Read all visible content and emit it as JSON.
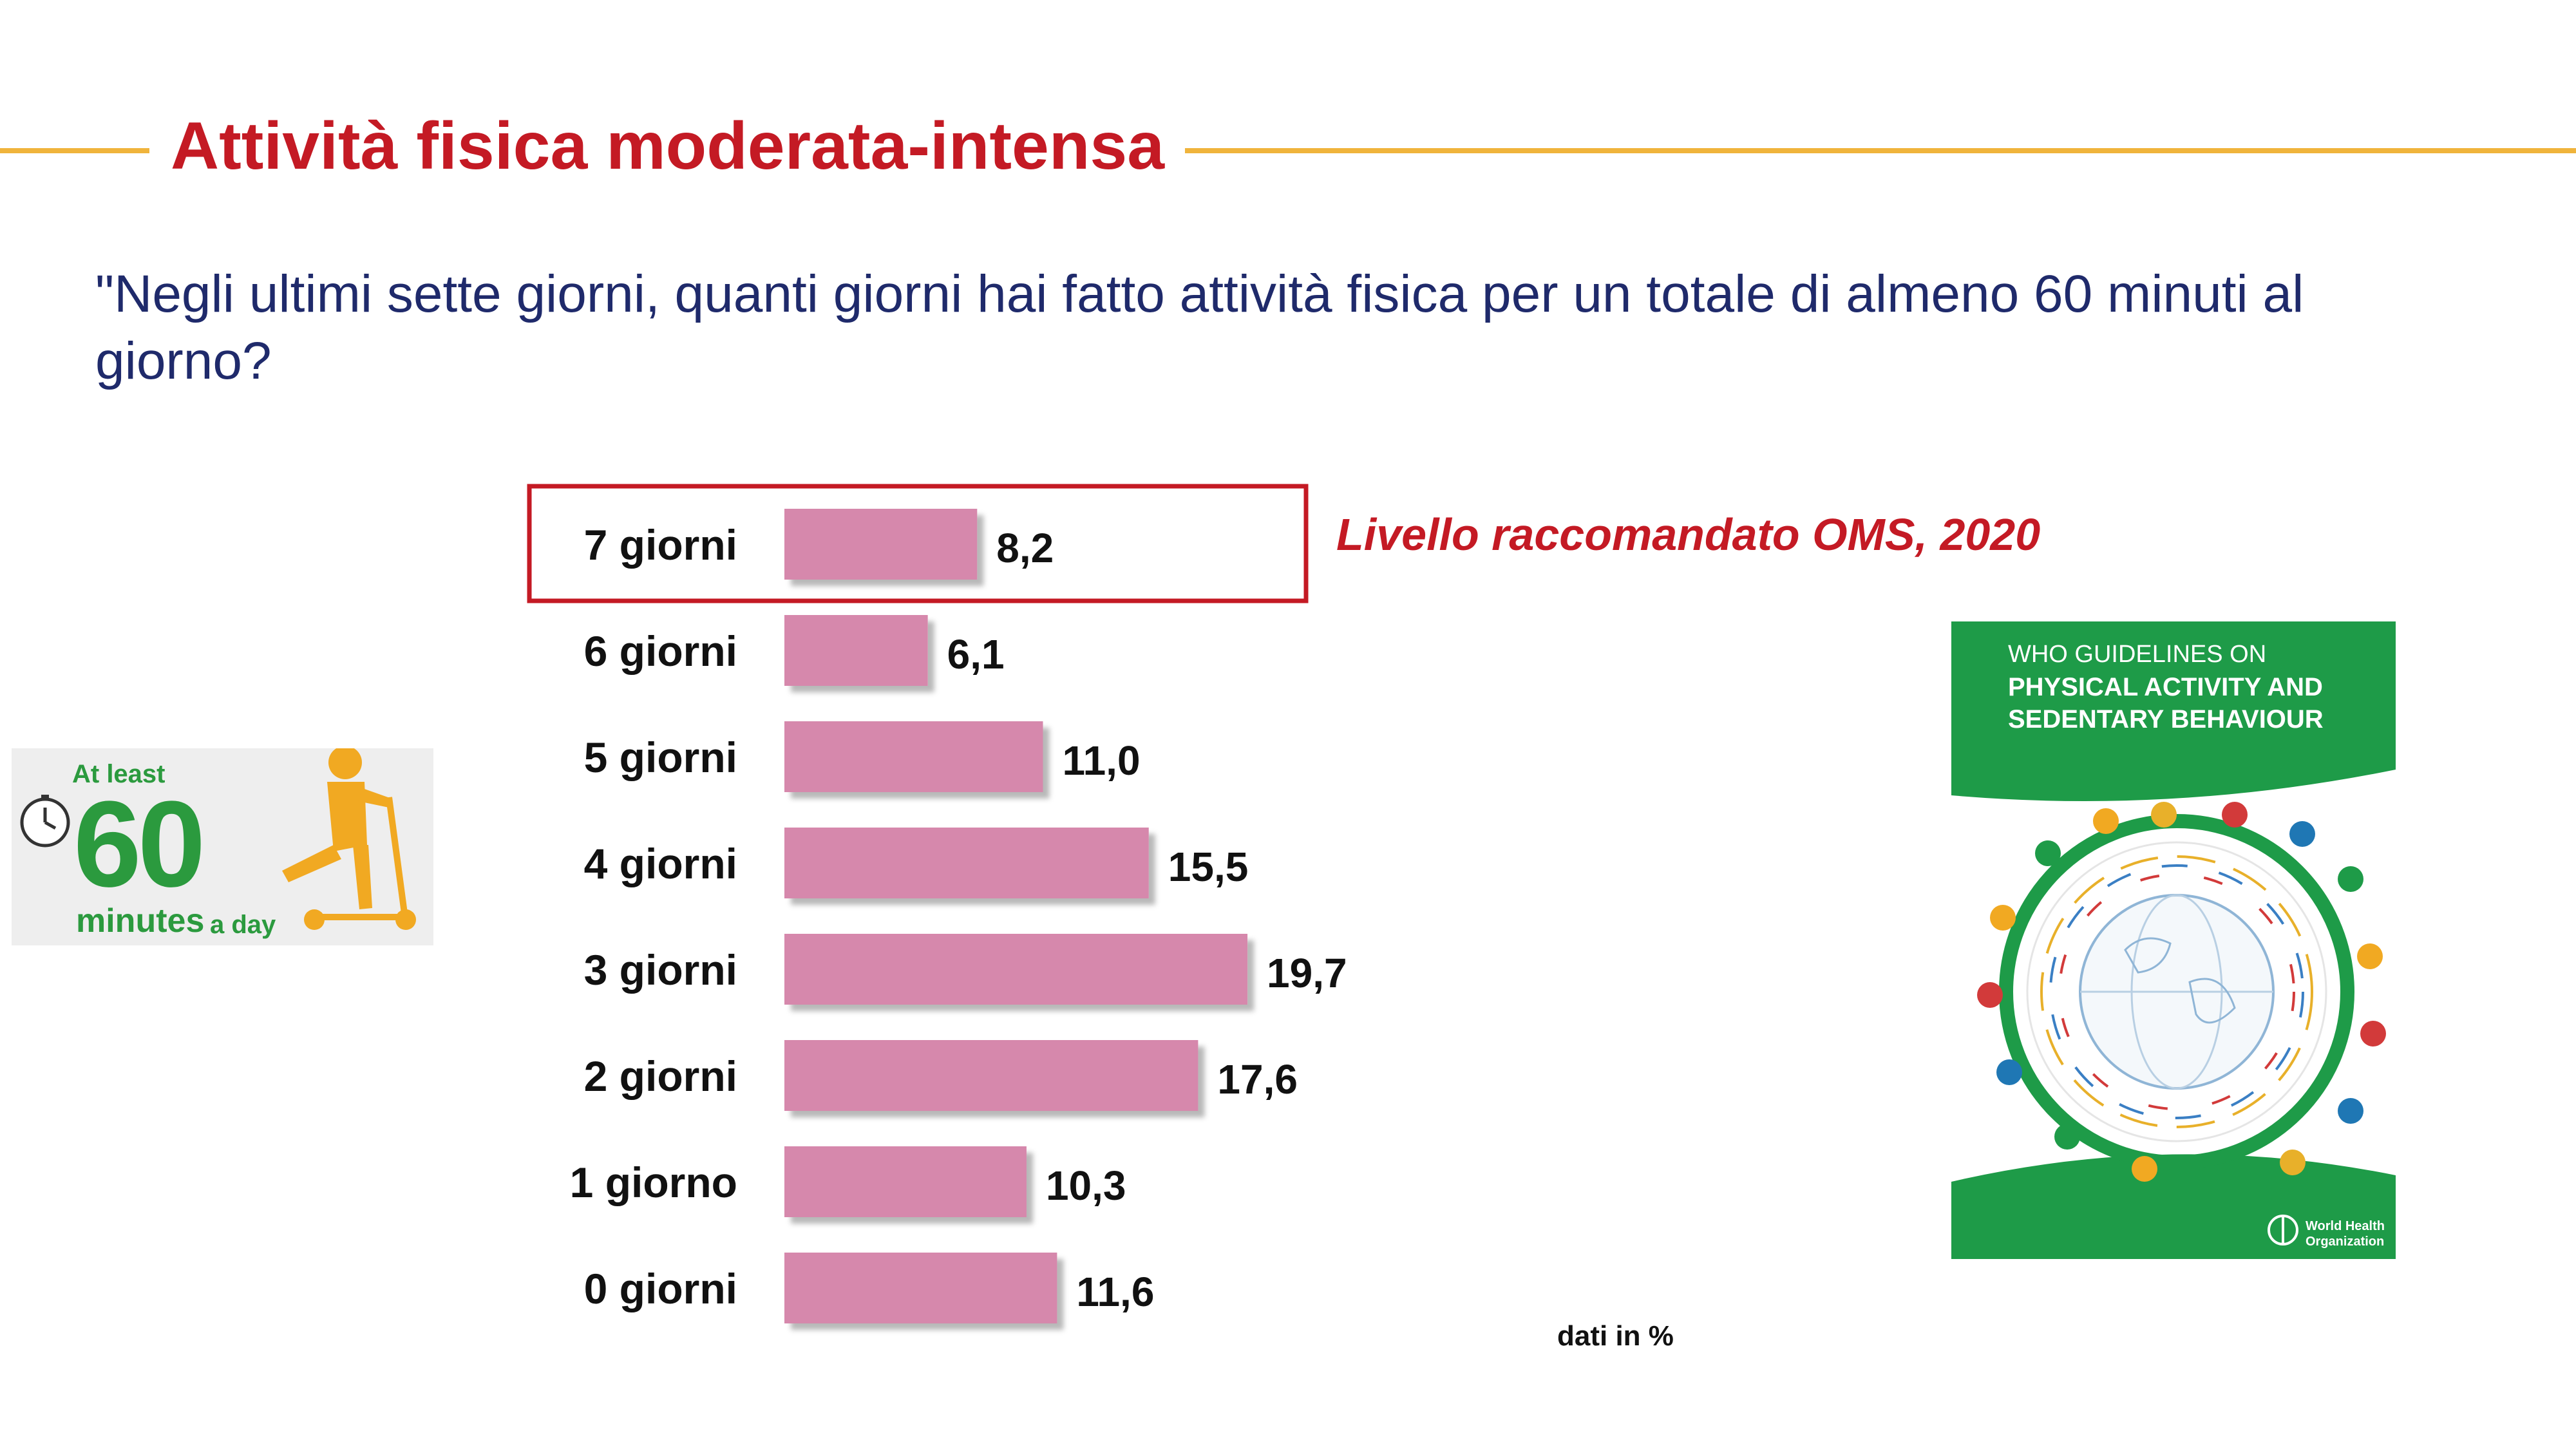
{
  "page": {
    "title": "Attività fisica moderata-intensa",
    "question": "\"Negli ultimi sette giorni, quanti giorni hai fatto attività fisica per un totale di almeno 60 minuti al giorno?",
    "oms_note": "Livello raccomandato OMS, 2020",
    "units_note": "dati in %",
    "accent_color": "#c41a24",
    "rule_color": "#f0b43c",
    "bar_color": "#d688ac"
  },
  "chart_data": {
    "type": "bar",
    "orientation": "horizontal",
    "categories": [
      "7 giorni",
      "6 giorni",
      "5 giorni",
      "4 giorni",
      "3 giorni",
      "2 giorni",
      "1 giorno",
      "0 giorni"
    ],
    "values": [
      8.2,
      6.1,
      11.0,
      15.5,
      19.7,
      17.6,
      10.3,
      11.6
    ],
    "value_labels": [
      "8,2",
      "6,1",
      "11,0",
      "15,5",
      "19,7",
      "17,6",
      "10,3",
      "11,6"
    ],
    "highlighted_category": "7 giorni",
    "grid": false,
    "axis_visible": false
  },
  "sixty_card": {
    "line1": "At least",
    "number": "60",
    "line2": "minutes",
    "line3": "a day",
    "icons": [
      "clock-icon",
      "scooter-child-icon"
    ]
  },
  "who_cover": {
    "line1": "WHO GUIDELINES ON",
    "line2": "PHYSICAL ACTIVITY AND",
    "line3": "SEDENTARY BEHAVIOUR",
    "org_line1": "World Health",
    "org_line2": "Organization",
    "green": "#1e9b48",
    "icons": [
      "globe-icon",
      "who-emblem-icon"
    ]
  }
}
